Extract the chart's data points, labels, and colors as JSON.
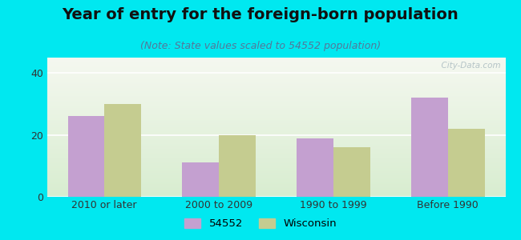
{
  "title": "Year of entry for the foreign-born population",
  "subtitle": "(Note: State values scaled to 54552 population)",
  "categories": [
    "2010 or later",
    "2000 to 2009",
    "1990 to 1999",
    "Before 1990"
  ],
  "values_54552": [
    26,
    11,
    19,
    32
  ],
  "values_wisconsin": [
    30,
    20,
    16,
    22
  ],
  "color_54552": "#c4a0d0",
  "color_wisconsin": "#c5cc90",
  "background_outer": "#00e8f0",
  "background_plot_top": "#f5f8f0",
  "background_plot_bottom": "#d8edd0",
  "ylim": [
    0,
    45
  ],
  "yticks": [
    0,
    20,
    40
  ],
  "bar_width": 0.32,
  "legend_label_54552": "54552",
  "legend_label_wisconsin": "Wisconsin",
  "watermark": "  City-Data.com",
  "title_fontsize": 14,
  "subtitle_fontsize": 9,
  "tick_fontsize": 9
}
